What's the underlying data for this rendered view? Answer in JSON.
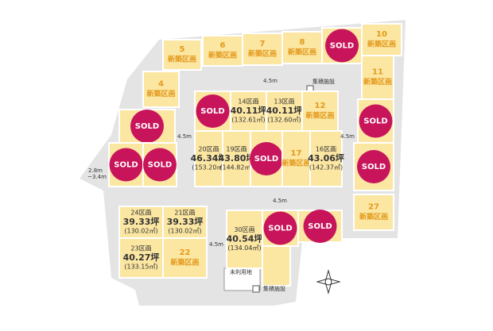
{
  "lots": [
    {
      "name": "5",
      "note": "新築区画"
    },
    {
      "name": "6",
      "note": "新築区画"
    },
    {
      "name": "7",
      "note": "新築区画"
    },
    {
      "name": "8",
      "note": "新築区画"
    },
    {
      "status": "SOLD"
    },
    {
      "name": "10",
      "note": "新築区画"
    },
    {
      "name": "11",
      "note": "新築区画"
    },
    {
      "status": "SOLD"
    },
    {
      "status": "SOLD"
    },
    {
      "name": "27",
      "note": "新築区画"
    },
    {
      "name": "4",
      "note": "新築区画"
    },
    {
      "status": "SOLD"
    },
    {
      "status": "SOLD"
    },
    {
      "status": "SOLD"
    },
    {
      "status": "SOLD"
    },
    {
      "name": "14区画",
      "tsubo": "40.11坪",
      "sqm": "(132.61㎡)"
    },
    {
      "name": "13区画",
      "tsubo": "40.11坪",
      "sqm": "(132.60㎡)"
    },
    {
      "name": "12",
      "note": "新築区画"
    },
    {
      "name": "20区画",
      "tsubo": "46.34坪",
      "sqm": "(153.20㎡)"
    },
    {
      "name": "19区画",
      "tsubo": "43.80坪",
      "sqm": "(144.82㎡)"
    },
    {
      "status": "SOLD"
    },
    {
      "name": "17",
      "note": "新築区画"
    },
    {
      "name": "16区画",
      "tsubo": "43.06坪",
      "sqm": "(142.37㎡)"
    },
    {
      "name": "24区画",
      "tsubo": "39.33坪",
      "sqm": "(130.02㎡)"
    },
    {
      "name": "21区画",
      "tsubo": "39.33坪",
      "sqm": "(130.02㎡)"
    },
    {
      "name": "23区画",
      "tsubo": "40.27坪",
      "sqm": "(133.15㎡)"
    },
    {
      "name": "22",
      "note": "新築区画"
    },
    {
      "name": "30区画",
      "tsubo": "40.54坪",
      "sqm": "(134.04㎡)"
    },
    {
      "status": "SOLD"
    },
    {
      "status": "SOLD"
    }
  ],
  "roads": [
    "4.5m",
    "4.5m",
    "4.5m",
    "4.5m",
    "4.5m",
    "2.8m",
    "~3.4m"
  ],
  "facilities": [
    "集積施設",
    "未利用地",
    "集積施設"
  ]
}
